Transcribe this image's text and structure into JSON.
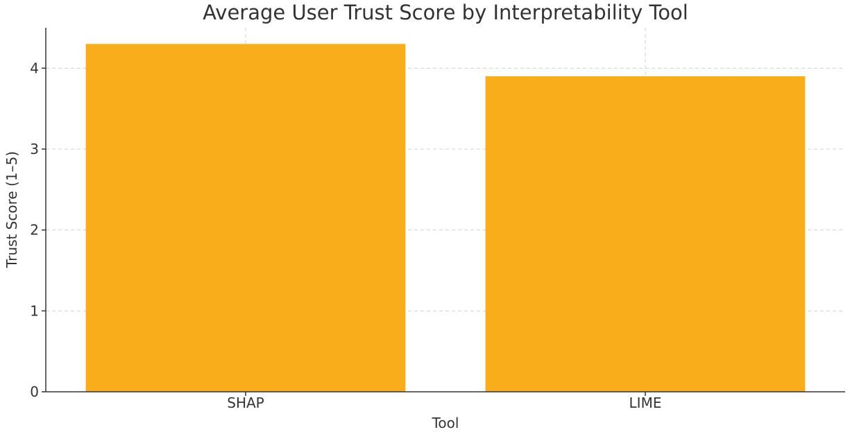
{
  "chart_data": {
    "type": "bar",
    "title": "Average User Trust Score by Interpretability Tool",
    "xlabel": "Tool",
    "ylabel": "Trust Score (1–5)",
    "categories": [
      "SHAP",
      "LIME"
    ],
    "values": [
      4.3,
      3.9
    ],
    "ylim": [
      0,
      4.5
    ],
    "yticks": [
      "0",
      "1",
      "2",
      "3",
      "4"
    ],
    "grid": true,
    "bar_color": "#FAAD1B"
  }
}
